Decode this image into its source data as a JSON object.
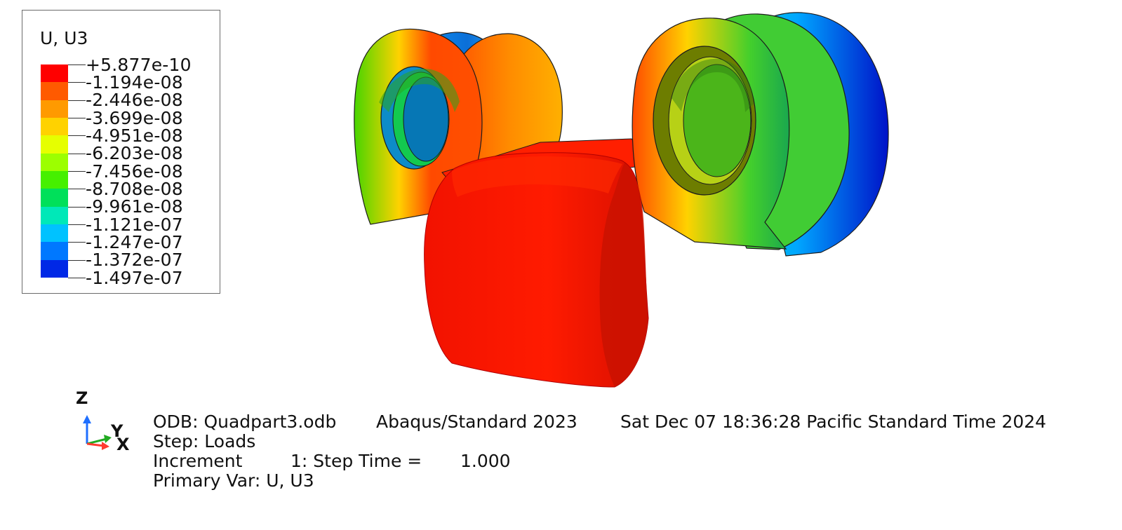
{
  "legend": {
    "title": "U, U3",
    "labels": [
      "+5.877e-10",
      "-1.194e-08",
      "-2.446e-08",
      "-3.699e-08",
      "-4.951e-08",
      "-6.203e-08",
      "-7.456e-08",
      "-8.708e-08",
      "-9.961e-08",
      "-1.121e-07",
      "-1.247e-07",
      "-1.372e-07",
      "-1.497e-07"
    ],
    "colors": [
      "#ff0000",
      "#ff5a00",
      "#ff9a00",
      "#ffd200",
      "#e6ff00",
      "#9cff00",
      "#46f000",
      "#00e05a",
      "#00e8b8",
      "#00c2ff",
      "#0078ff",
      "#0028e6"
    ]
  },
  "triad": {
    "z": "Z",
    "y": "Y",
    "x": "X",
    "z_color": "#1f6fff",
    "y_color": "#22aa22",
    "x_color": "#ff3b30"
  },
  "info": {
    "odb": "ODB: Quadpart3.odb",
    "solver": "Abaqus/Standard 2023",
    "datetime": "Sat Dec 07 18:36:28 Pacific Standard Time 2024",
    "step": "Step: Loads",
    "increment_label": "Increment",
    "increment_value": "1: Step Time =",
    "step_time": "1.000",
    "primary_var": "Primary Var: U, U3"
  }
}
